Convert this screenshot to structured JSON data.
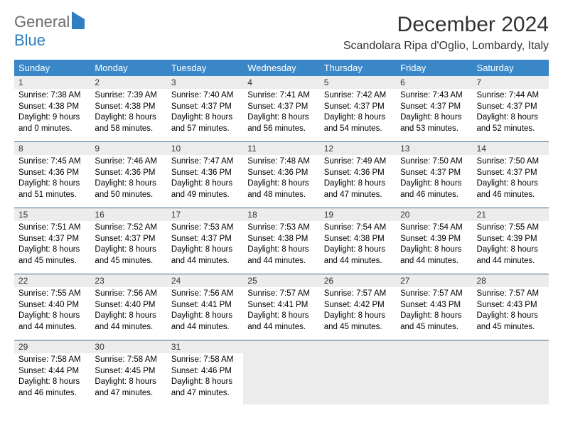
{
  "brand": {
    "part1": "General",
    "part2": "Blue"
  },
  "title": "December 2024",
  "location": "Scandolara Ripa d'Oglio, Lombardy, Italy",
  "colors": {
    "header_bg": "#3a87c8",
    "header_text": "#ffffff",
    "daynum_bg": "#ececec",
    "row_border": "#3a6a94",
    "brand_gray": "#6b6b6b",
    "brand_blue": "#2f7ec2"
  },
  "columns": [
    "Sunday",
    "Monday",
    "Tuesday",
    "Wednesday",
    "Thursday",
    "Friday",
    "Saturday"
  ],
  "weeks": [
    [
      {
        "n": "1",
        "sr": "7:38 AM",
        "ss": "4:38 PM",
        "dl": "9 hours and 0 minutes."
      },
      {
        "n": "2",
        "sr": "7:39 AM",
        "ss": "4:38 PM",
        "dl": "8 hours and 58 minutes."
      },
      {
        "n": "3",
        "sr": "7:40 AM",
        "ss": "4:37 PM",
        "dl": "8 hours and 57 minutes."
      },
      {
        "n": "4",
        "sr": "7:41 AM",
        "ss": "4:37 PM",
        "dl": "8 hours and 56 minutes."
      },
      {
        "n": "5",
        "sr": "7:42 AM",
        "ss": "4:37 PM",
        "dl": "8 hours and 54 minutes."
      },
      {
        "n": "6",
        "sr": "7:43 AM",
        "ss": "4:37 PM",
        "dl": "8 hours and 53 minutes."
      },
      {
        "n": "7",
        "sr": "7:44 AM",
        "ss": "4:37 PM",
        "dl": "8 hours and 52 minutes."
      }
    ],
    [
      {
        "n": "8",
        "sr": "7:45 AM",
        "ss": "4:36 PM",
        "dl": "8 hours and 51 minutes."
      },
      {
        "n": "9",
        "sr": "7:46 AM",
        "ss": "4:36 PM",
        "dl": "8 hours and 50 minutes."
      },
      {
        "n": "10",
        "sr": "7:47 AM",
        "ss": "4:36 PM",
        "dl": "8 hours and 49 minutes."
      },
      {
        "n": "11",
        "sr": "7:48 AM",
        "ss": "4:36 PM",
        "dl": "8 hours and 48 minutes."
      },
      {
        "n": "12",
        "sr": "7:49 AM",
        "ss": "4:36 PM",
        "dl": "8 hours and 47 minutes."
      },
      {
        "n": "13",
        "sr": "7:50 AM",
        "ss": "4:37 PM",
        "dl": "8 hours and 46 minutes."
      },
      {
        "n": "14",
        "sr": "7:50 AM",
        "ss": "4:37 PM",
        "dl": "8 hours and 46 minutes."
      }
    ],
    [
      {
        "n": "15",
        "sr": "7:51 AM",
        "ss": "4:37 PM",
        "dl": "8 hours and 45 minutes."
      },
      {
        "n": "16",
        "sr": "7:52 AM",
        "ss": "4:37 PM",
        "dl": "8 hours and 45 minutes."
      },
      {
        "n": "17",
        "sr": "7:53 AM",
        "ss": "4:37 PM",
        "dl": "8 hours and 44 minutes."
      },
      {
        "n": "18",
        "sr": "7:53 AM",
        "ss": "4:38 PM",
        "dl": "8 hours and 44 minutes."
      },
      {
        "n": "19",
        "sr": "7:54 AM",
        "ss": "4:38 PM",
        "dl": "8 hours and 44 minutes."
      },
      {
        "n": "20",
        "sr": "7:54 AM",
        "ss": "4:39 PM",
        "dl": "8 hours and 44 minutes."
      },
      {
        "n": "21",
        "sr": "7:55 AM",
        "ss": "4:39 PM",
        "dl": "8 hours and 44 minutes."
      }
    ],
    [
      {
        "n": "22",
        "sr": "7:55 AM",
        "ss": "4:40 PM",
        "dl": "8 hours and 44 minutes."
      },
      {
        "n": "23",
        "sr": "7:56 AM",
        "ss": "4:40 PM",
        "dl": "8 hours and 44 minutes."
      },
      {
        "n": "24",
        "sr": "7:56 AM",
        "ss": "4:41 PM",
        "dl": "8 hours and 44 minutes."
      },
      {
        "n": "25",
        "sr": "7:57 AM",
        "ss": "4:41 PM",
        "dl": "8 hours and 44 minutes."
      },
      {
        "n": "26",
        "sr": "7:57 AM",
        "ss": "4:42 PM",
        "dl": "8 hours and 45 minutes."
      },
      {
        "n": "27",
        "sr": "7:57 AM",
        "ss": "4:43 PM",
        "dl": "8 hours and 45 minutes."
      },
      {
        "n": "28",
        "sr": "7:57 AM",
        "ss": "4:43 PM",
        "dl": "8 hours and 45 minutes."
      }
    ],
    [
      {
        "n": "29",
        "sr": "7:58 AM",
        "ss": "4:44 PM",
        "dl": "8 hours and 46 minutes."
      },
      {
        "n": "30",
        "sr": "7:58 AM",
        "ss": "4:45 PM",
        "dl": "8 hours and 47 minutes."
      },
      {
        "n": "31",
        "sr": "7:58 AM",
        "ss": "4:46 PM",
        "dl": "8 hours and 47 minutes."
      },
      {
        "empty": true
      },
      {
        "empty": true
      },
      {
        "empty": true
      },
      {
        "empty": true
      }
    ]
  ],
  "labels": {
    "sunrise": "Sunrise: ",
    "sunset": "Sunset: ",
    "daylight": "Daylight: "
  }
}
